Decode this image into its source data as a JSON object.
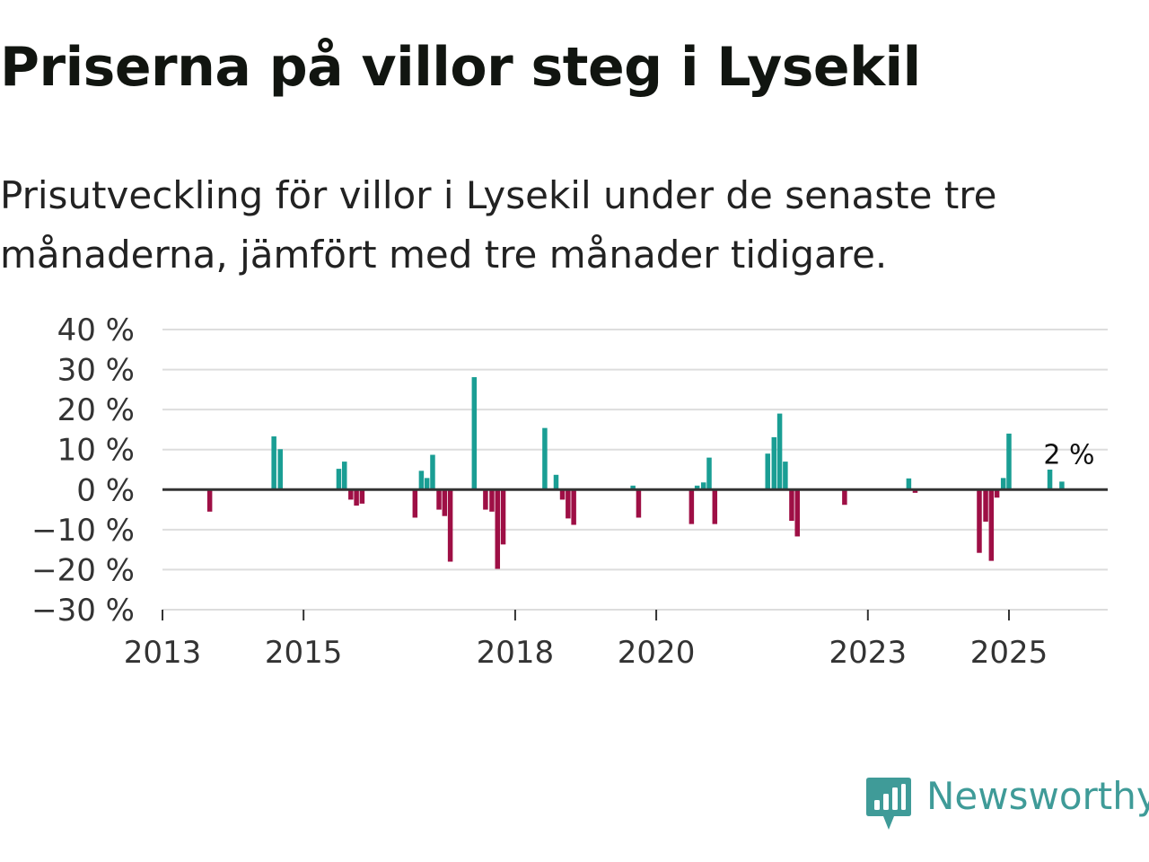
{
  "title": "Priserna på villor steg i Lysekil",
  "subtitle": "Prisutveckling för villor i Lysekil under de senaste tre månaderna, jämfört med tre månader tidigare.",
  "logo": {
    "text": "Newsworthy",
    "icon": "newsworthy-logo-icon"
  },
  "colors": {
    "positive": "#1a9e94",
    "negative": "#9e0f45",
    "grid": "#dddddd",
    "axis": "#333333",
    "logo": "#3f9b98"
  },
  "chart_data": {
    "type": "bar",
    "title": "Priserna på villor steg i Lysekil",
    "xlabel": "",
    "ylabel": "",
    "ylim": [
      -30,
      40
    ],
    "yticks": [
      40,
      30,
      20,
      10,
      0,
      -10,
      -20,
      -30
    ],
    "ytick_labels": [
      "40 %",
      "30 %",
      "20 %",
      "10 %",
      "0 %",
      "−10 %",
      "−20 %",
      "−30 %"
    ],
    "xlim": [
      2013,
      2026.4
    ],
    "xticks": [
      2013,
      2015,
      2018,
      2020,
      2023,
      2025
    ],
    "xtick_labels": [
      "2013",
      "2015",
      "2018",
      "2020",
      "2023",
      "2025"
    ],
    "annotation": {
      "text": "2 %",
      "x": 2025.75,
      "y": 2
    },
    "series": [
      {
        "name": "Prisutveckling",
        "points": [
          {
            "x": 2013.67,
            "y": -5.5
          },
          {
            "x": 2014.58,
            "y": 13.3
          },
          {
            "x": 2014.67,
            "y": 10.1
          },
          {
            "x": 2015.5,
            "y": 5.2
          },
          {
            "x": 2015.58,
            "y": 7.0
          },
          {
            "x": 2015.67,
            "y": -2.5
          },
          {
            "x": 2015.75,
            "y": -4.0
          },
          {
            "x": 2015.83,
            "y": -3.5
          },
          {
            "x": 2016.58,
            "y": -7.0
          },
          {
            "x": 2016.67,
            "y": 4.7
          },
          {
            "x": 2016.75,
            "y": 2.9
          },
          {
            "x": 2016.83,
            "y": 8.7
          },
          {
            "x": 2016.92,
            "y": -5.0
          },
          {
            "x": 2017.0,
            "y": -6.6
          },
          {
            "x": 2017.08,
            "y": -18.0
          },
          {
            "x": 2017.42,
            "y": 28.1
          },
          {
            "x": 2017.58,
            "y": -5.0
          },
          {
            "x": 2017.67,
            "y": -5.5
          },
          {
            "x": 2017.75,
            "y": -19.8
          },
          {
            "x": 2017.83,
            "y": -13.7
          },
          {
            "x": 2018.42,
            "y": 15.4
          },
          {
            "x": 2018.58,
            "y": 3.7
          },
          {
            "x": 2018.67,
            "y": -2.5
          },
          {
            "x": 2018.75,
            "y": -7.2
          },
          {
            "x": 2018.83,
            "y": -8.8
          },
          {
            "x": 2019.67,
            "y": 1.0
          },
          {
            "x": 2019.75,
            "y": -7.0
          },
          {
            "x": 2020.5,
            "y": -8.6
          },
          {
            "x": 2020.58,
            "y": 1.0
          },
          {
            "x": 2020.67,
            "y": 1.8
          },
          {
            "x": 2020.75,
            "y": 8.0
          },
          {
            "x": 2020.83,
            "y": -8.6
          },
          {
            "x": 2021.58,
            "y": 9.0
          },
          {
            "x": 2021.67,
            "y": 13.1
          },
          {
            "x": 2021.75,
            "y": 19.0
          },
          {
            "x": 2021.83,
            "y": 7.0
          },
          {
            "x": 2021.92,
            "y": -7.8
          },
          {
            "x": 2022.0,
            "y": -11.7
          },
          {
            "x": 2022.67,
            "y": -3.8
          },
          {
            "x": 2023.58,
            "y": 2.8
          },
          {
            "x": 2023.67,
            "y": -0.8
          },
          {
            "x": 2024.58,
            "y": -15.8
          },
          {
            "x": 2024.67,
            "y": -8.0
          },
          {
            "x": 2024.75,
            "y": -17.8
          },
          {
            "x": 2024.83,
            "y": -2.0
          },
          {
            "x": 2024.92,
            "y": 2.9
          },
          {
            "x": 2025.0,
            "y": 14.0
          },
          {
            "x": 2025.58,
            "y": 5.0
          },
          {
            "x": 2025.75,
            "y": 2.0
          }
        ]
      }
    ]
  }
}
